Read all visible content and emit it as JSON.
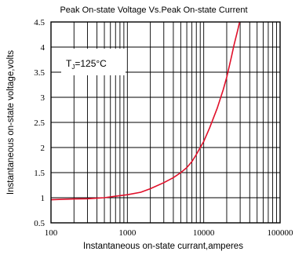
{
  "chart_data": {
    "type": "line",
    "title": "Peak On-state Voltage Vs.Peak On-state Current",
    "xlabel": "Instantaneous on-state currant,amperes",
    "ylabel": "Instantaneous on-state voltage,volts",
    "xscale": "log",
    "xlim": [
      100,
      100000
    ],
    "ylim": [
      0.5,
      4.5
    ],
    "grid": true,
    "x_ticks": [
      {
        "value": 100,
        "label": "100"
      },
      {
        "value": 1000,
        "label": "1000"
      },
      {
        "value": 10000,
        "label": "10000"
      },
      {
        "value": 100000,
        "label": "100000"
      }
    ],
    "y_ticks": [
      {
        "value": 0.5,
        "label": "0.5"
      },
      {
        "value": 1,
        "label": "1"
      },
      {
        "value": 1.5,
        "label": "1.5"
      },
      {
        "value": 2,
        "label": "2"
      },
      {
        "value": 2.5,
        "label": "2.5"
      },
      {
        "value": 3,
        "label": "3"
      },
      {
        "value": 3.5,
        "label": "3.5"
      },
      {
        "value": 4,
        "label": "4"
      },
      {
        "value": 4.5,
        "label": "4.5"
      }
    ],
    "annotation": {
      "text_main": "T",
      "text_sub": "J",
      "text_rest": "=125°C"
    },
    "series": [
      {
        "color": "#e0102a",
        "x": [
          100,
          150,
          200,
          300,
          500,
          700,
          1000,
          1500,
          2000,
          3000,
          4000,
          5000,
          6000,
          7000,
          8000,
          9000,
          10000,
          12000,
          15000,
          18000,
          20000,
          23000,
          25000,
          28000,
          30000
        ],
        "y": [
          0.96,
          0.97,
          0.975,
          0.98,
          1.0,
          1.03,
          1.06,
          1.11,
          1.18,
          1.3,
          1.4,
          1.5,
          1.6,
          1.72,
          1.86,
          2.0,
          2.12,
          2.4,
          2.78,
          3.15,
          3.4,
          3.8,
          4.05,
          4.35,
          4.55
        ]
      }
    ]
  }
}
